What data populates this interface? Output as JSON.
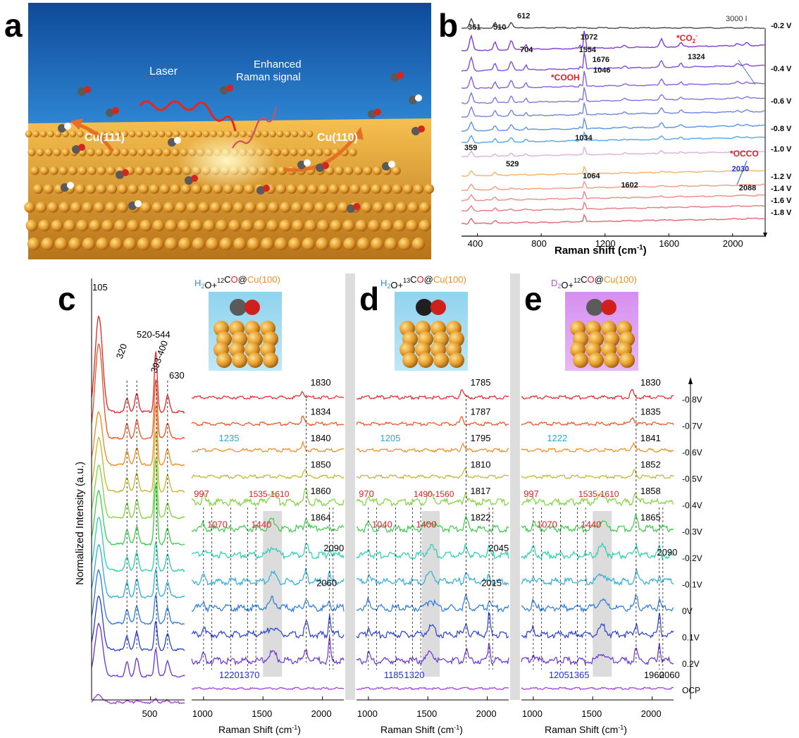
{
  "panels": {
    "a": {
      "letter": "a",
      "labels": {
        "laser": "Laser",
        "enhanced1": "Enhanced",
        "enhanced2": "Raman signal",
        "cu111": "Cu(111)",
        "cu110": "Cu(110)"
      }
    },
    "b": {
      "letter": "b",
      "scale_label": "3000 I",
      "xlabel": "Raman shift (cm",
      "xlabel_sup": "-1",
      "xlabel_end": ")",
      "x_ticks": [
        "400",
        "800",
        "1200",
        "1600",
        "2000"
      ],
      "potentials": [
        "-0.2 V",
        "-0.4 V",
        "-0.6 V",
        "-0.8 V",
        "-1.0 V",
        "-1.2 V",
        "-1.4 V",
        "-1.6 V",
        "-1.8 V"
      ],
      "peak_labels": [
        "361",
        "510",
        "612",
        "704",
        "1072",
        "1046",
        "1324",
        "1554",
        "1676",
        "1034",
        "359",
        "529",
        "1064",
        "1602",
        "2030",
        "2088"
      ],
      "species": {
        "cooh": "*COOH",
        "co2": "*CO",
        "co2_sub": "2",
        "co2_sup": "-",
        "occo": "*OCCO"
      }
    },
    "cde": {
      "ylabel": "Normalized Intensity (a.u.)",
      "xlabel": "Raman Shift (cm",
      "xlabel_alt": "Raman Shift (cm",
      "xlabel_sup": "-1",
      "xlabel_end": ")",
      "potentials": [
        "-0.8V",
        "-0.7V",
        "-0.6V",
        "-0.5V",
        "-0.4V",
        "-0.3V",
        "-0.2V",
        "-0.1V",
        "0V",
        "0.1V",
        "0.2V",
        "OCP"
      ],
      "low_ticks": [
        "500"
      ],
      "c": {
        "letter": "c",
        "title_parts": [
          "H",
          "2",
          "O+",
          "12",
          "C",
          "O",
          "@",
          "Cu(100)"
        ],
        "ticks": [
          "1000",
          "1500",
          "2000"
        ],
        "low_peaks": [
          "105",
          "520-544",
          "320",
          "393-400",
          "630"
        ],
        "co_peaks": [
          "1830",
          "1834",
          "1840",
          "1850",
          "1860",
          "1864"
        ],
        "cyan_peak": "1235",
        "red_peaks": [
          "997",
          "1535-1610",
          "1070",
          "1440"
        ],
        "black_peaks": [
          "2090",
          "2060"
        ],
        "blue_peaks": [
          "1220",
          "1370"
        ]
      },
      "d": {
        "letter": "d",
        "title_parts": [
          "H",
          "2",
          "O+",
          "13",
          "C",
          "O",
          "@",
          "Cu(100)"
        ],
        "ticks": [
          "1000",
          "1500",
          "2000"
        ],
        "co_peaks": [
          "1785",
          "1787",
          "1795",
          "1810",
          "1817",
          "1822"
        ],
        "cyan_peak": "1205",
        "red_peaks": [
          "970",
          "1490-1560",
          "1040",
          "1400"
        ],
        "black_peaks": [
          "2045",
          "2015"
        ],
        "blue_peaks": [
          "1185",
          "1320"
        ]
      },
      "e": {
        "letter": "e",
        "title_parts": [
          "D",
          "2",
          "O+",
          "12",
          "C",
          "O",
          "@",
          "Cu(100)"
        ],
        "ticks": [
          "1000",
          "1500",
          "2000"
        ],
        "co_peaks": [
          "1830",
          "1835",
          "1841",
          "1852",
          "1858",
          "1865"
        ],
        "cyan_peak": "1222",
        "red_peaks": [
          "997",
          "1535-1610",
          "1070",
          "1440"
        ],
        "black_peaks": [
          "2090",
          "1960",
          "2060"
        ],
        "blue_peaks": [
          "1205",
          "1365"
        ]
      }
    }
  },
  "colors": {
    "b_traces": [
      "#4a4a4a",
      "#7c3fd0",
      "#7e4fd8",
      "#8660dc",
      "#7f78de",
      "#6f86e0",
      "#5c93e6",
      "#55a7ec",
      "#e0b0d8",
      "#f1b46a",
      "#f59a82",
      "#ef8a86",
      "#e87a80",
      "#e0686e"
    ],
    "cde_traces": [
      "#e32626",
      "#f0521f",
      "#f08a1e",
      "#c4b52a",
      "#7fd43a",
      "#3bcf48",
      "#27cfb4",
      "#29aee0",
      "#2a79dc",
      "#2a3fcf",
      "#6a32d8",
      "#a036d6"
    ],
    "peak_red": "#e0202a",
    "peak_blue": "#1f2fd0",
    "peak_cyan": "#25a9e0",
    "cu_orange": "#f09020",
    "h2o_blue": "#3a8fd6",
    "d2o_purple": "#c053d8"
  }
}
